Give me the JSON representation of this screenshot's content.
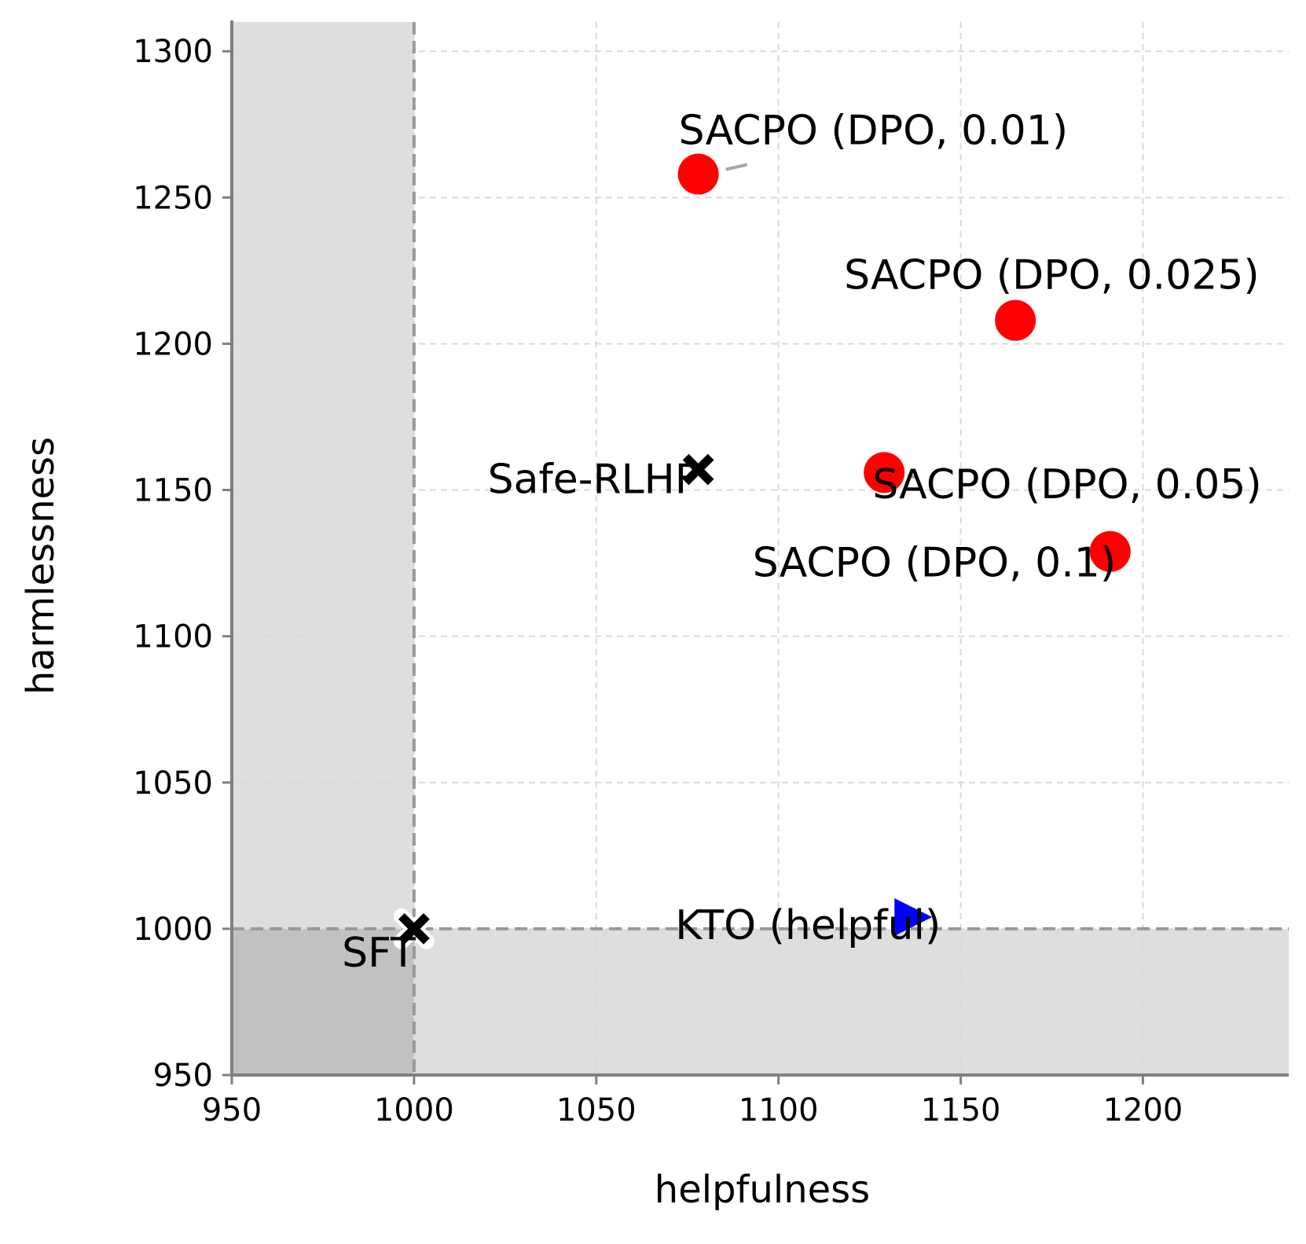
{
  "chart_data": {
    "type": "scatter",
    "title": "",
    "xlabel": "helpfulness",
    "ylabel": "harmlessness",
    "xlim": [
      950,
      1240
    ],
    "ylim": [
      950,
      1310
    ],
    "x_ticks": [
      950,
      1000,
      1050,
      1100,
      1150,
      1200
    ],
    "y_ticks": [
      950,
      1000,
      1050,
      1100,
      1150,
      1200,
      1250,
      1300
    ],
    "grid": true,
    "legend": "none",
    "baseline": {
      "x": 1000,
      "y": 1000
    },
    "shaded_regions": [
      "helpfulness < 1000",
      "harmlessness < 1000"
    ],
    "points": [
      {
        "label": "SACPO (DPO, 0.01)",
        "x": 1078,
        "y": 1258,
        "marker": "circle",
        "color": "#ff0000"
      },
      {
        "label": "SACPO (DPO, 0.025)",
        "x": 1165,
        "y": 1208,
        "marker": "circle",
        "color": "#ff0000"
      },
      {
        "label": "SACPO (DPO, 0.05)",
        "x": 1129,
        "y": 1156,
        "marker": "circle",
        "color": "#ff0000"
      },
      {
        "label": "SACPO (DPO, 0.1)",
        "x": 1191,
        "y": 1129,
        "marker": "circle",
        "color": "#ff0000"
      },
      {
        "label": "Safe-RLHF",
        "x": 1078,
        "y": 1157,
        "marker": "x",
        "color": "#000000"
      },
      {
        "label": "SFT",
        "x": 1000,
        "y": 1000,
        "marker": "x",
        "color": "#000000"
      },
      {
        "label": "KTO (helpful)",
        "x": 1137,
        "y": 1004,
        "marker": "triangle-right",
        "color": "#0000ff"
      }
    ]
  }
}
